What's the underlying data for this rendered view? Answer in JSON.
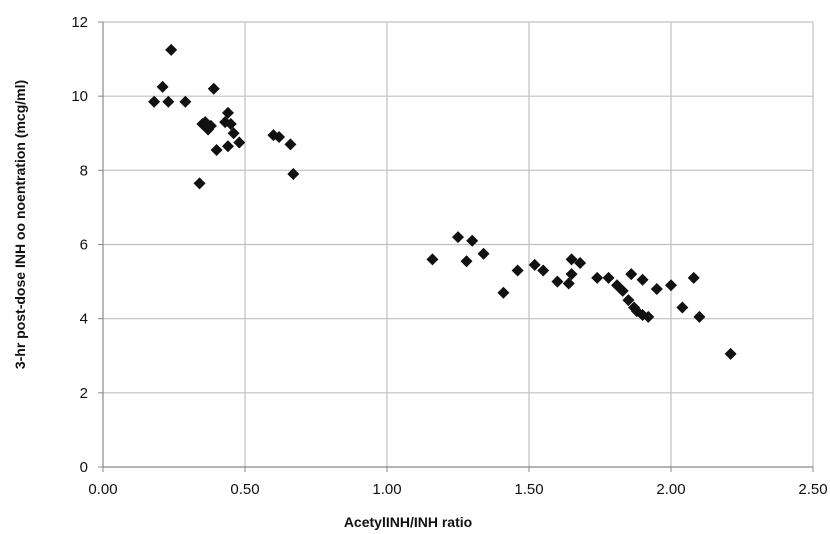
{
  "chart_data": {
    "type": "scatter",
    "title": "",
    "xlabel": "AcetylINH/INH ratio",
    "ylabel": "3-hr post-dose INH oo noentration (mcg/ml)",
    "xlim": [
      0,
      2.5
    ],
    "ylim": [
      0,
      12
    ],
    "xticks": [
      "0.00",
      "0.50",
      "1.00",
      "1.50",
      "2.00",
      "2.50"
    ],
    "yticks": [
      "0",
      "2",
      "4",
      "6",
      "8",
      "10",
      "12"
    ],
    "grid": true,
    "legend": "none",
    "marker": "diamond",
    "colors": {
      "marker": "#111111",
      "grid": "#c0c0c0",
      "axis": "#888888"
    },
    "series": [
      {
        "points": [
          [
            0.18,
            9.85
          ],
          [
            0.21,
            10.25
          ],
          [
            0.23,
            9.85
          ],
          [
            0.24,
            11.25
          ],
          [
            0.29,
            9.85
          ],
          [
            0.34,
            7.65
          ],
          [
            0.35,
            9.25
          ],
          [
            0.36,
            9.3
          ],
          [
            0.37,
            9.1
          ],
          [
            0.38,
            9.2
          ],
          [
            0.39,
            10.2
          ],
          [
            0.4,
            8.55
          ],
          [
            0.43,
            9.3
          ],
          [
            0.44,
            8.65
          ],
          [
            0.44,
            9.55
          ],
          [
            0.45,
            9.25
          ],
          [
            0.46,
            9.0
          ],
          [
            0.48,
            8.75
          ],
          [
            0.6,
            8.95
          ],
          [
            0.62,
            8.9
          ],
          [
            0.66,
            8.7
          ],
          [
            0.67,
            7.9
          ],
          [
            1.16,
            5.6
          ],
          [
            1.25,
            6.2
          ],
          [
            1.28,
            5.55
          ],
          [
            1.3,
            6.1
          ],
          [
            1.34,
            5.75
          ],
          [
            1.41,
            4.7
          ],
          [
            1.46,
            5.3
          ],
          [
            1.52,
            5.45
          ],
          [
            1.55,
            5.3
          ],
          [
            1.6,
            5.0
          ],
          [
            1.64,
            4.95
          ],
          [
            1.65,
            5.2
          ],
          [
            1.65,
            5.6
          ],
          [
            1.68,
            5.5
          ],
          [
            1.74,
            5.1
          ],
          [
            1.78,
            5.1
          ],
          [
            1.81,
            4.9
          ],
          [
            1.83,
            4.75
          ],
          [
            1.85,
            4.5
          ],
          [
            1.86,
            5.2
          ],
          [
            1.87,
            4.3
          ],
          [
            1.88,
            4.2
          ],
          [
            1.9,
            5.05
          ],
          [
            1.9,
            4.1
          ],
          [
            1.92,
            4.05
          ],
          [
            1.95,
            4.8
          ],
          [
            2.0,
            4.9
          ],
          [
            2.04,
            4.3
          ],
          [
            2.08,
            5.1
          ],
          [
            2.1,
            4.05
          ],
          [
            2.21,
            3.05
          ]
        ]
      }
    ]
  }
}
